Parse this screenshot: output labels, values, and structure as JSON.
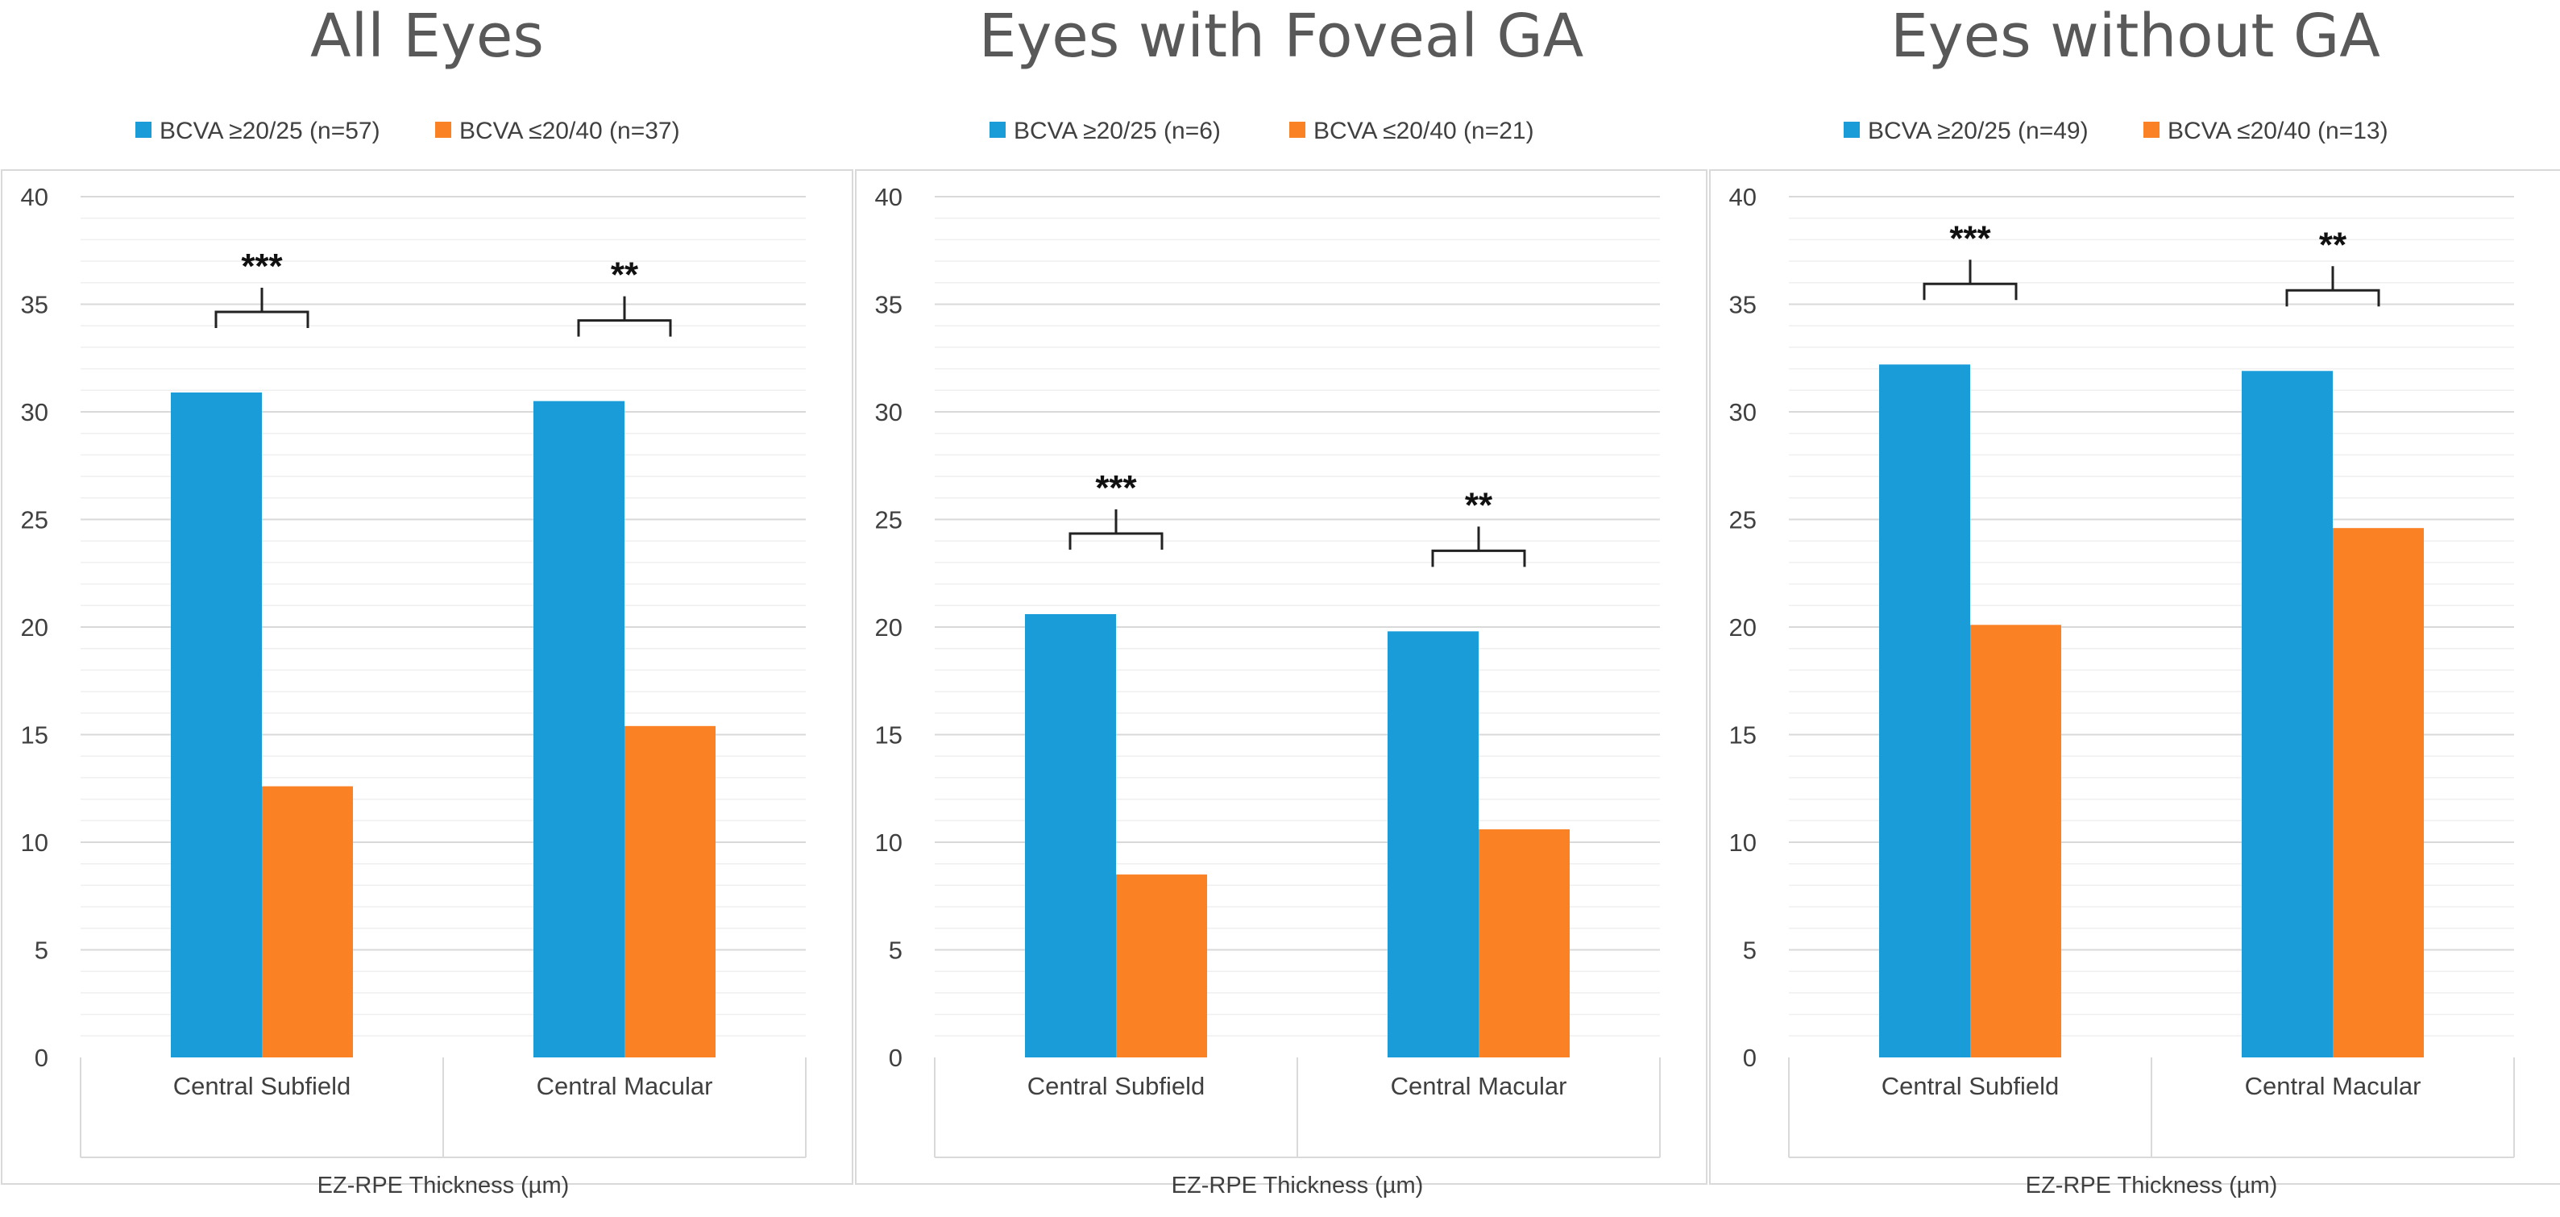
{
  "chart_data": [
    {
      "type": "bar",
      "title": "All Eyes",
      "categories": [
        "Central Subfield",
        "Central Macular"
      ],
      "series": [
        {
          "name": "BCVA ≥20/25 (n=57)",
          "values": [
            30.9,
            30.5
          ]
        },
        {
          "name": "BCVA ≤20/40 (n=37)",
          "values": [
            12.6,
            15.4
          ]
        }
      ],
      "significance": [
        "***",
        "**"
      ],
      "xlabel": "EZ-RPE Thickness (µm)",
      "ylabel": "",
      "ylim": [
        0,
        40
      ],
      "yticks": [
        0,
        5,
        10,
        15,
        20,
        25,
        30,
        35,
        40
      ],
      "grid": true,
      "legend": "top"
    },
    {
      "type": "bar",
      "title": "Eyes with Foveal GA",
      "categories": [
        "Central Subfield",
        "Central Macular"
      ],
      "series": [
        {
          "name": "BCVA ≥20/25 (n=6)",
          "values": [
            20.6,
            19.8
          ]
        },
        {
          "name": "BCVA ≤20/40 (n=21)",
          "values": [
            8.5,
            10.6
          ]
        }
      ],
      "significance": [
        "***",
        "**"
      ],
      "xlabel": "EZ-RPE Thickness (µm)",
      "ylabel": "",
      "ylim": [
        0,
        40
      ],
      "yticks": [
        0,
        5,
        10,
        15,
        20,
        25,
        30,
        35,
        40
      ],
      "grid": true,
      "legend": "top"
    },
    {
      "type": "bar",
      "title": "Eyes without GA",
      "categories": [
        "Central Subfield",
        "Central Macular"
      ],
      "series": [
        {
          "name": "BCVA ≥20/25 (n=49)",
          "values": [
            32.2,
            31.9
          ]
        },
        {
          "name": "BCVA ≤20/40 (n=13)",
          "values": [
            20.1,
            24.6
          ]
        }
      ],
      "significance": [
        "***",
        "**"
      ],
      "xlabel": "EZ-RPE Thickness (µm)",
      "ylabel": "",
      "ylim": [
        0,
        40
      ],
      "yticks": [
        0,
        5,
        10,
        15,
        20,
        25,
        30,
        35,
        40
      ],
      "grid": true,
      "legend": "top"
    }
  ],
  "colors": {
    "series_1": "#1a9cd8",
    "series_2": "#fb8125",
    "grid_major": "#d9d9d9",
    "grid_minor": "#efefef",
    "frame": "#d9d9d9"
  }
}
